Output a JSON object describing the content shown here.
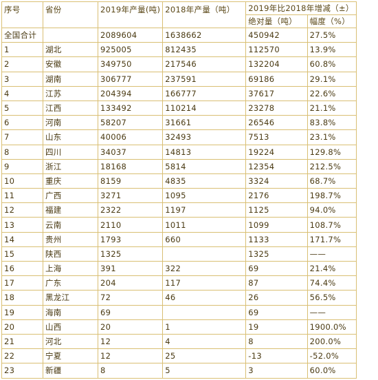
{
  "header": {
    "seq": "序号",
    "province": "省份",
    "output_2019": "2019年产量(吨)",
    "output_2018": "2018年产量（吨）",
    "change": "2019年比2018年增减（±）",
    "abs": "绝对量（吨）",
    "pct": "幅度（%）"
  },
  "rows": [
    {
      "seq": "全国合计",
      "province": "",
      "v2019": "2089604",
      "v2018": "1638662",
      "abs": "450942",
      "pct": "27.5%"
    },
    {
      "seq": "1",
      "province": "湖北",
      "v2019": "925005",
      "v2018": "812435",
      "abs": "112570",
      "pct": "13.9%"
    },
    {
      "seq": "2",
      "province": "安徽",
      "v2019": "349750",
      "v2018": "217546",
      "abs": "132204",
      "pct": "60.8%"
    },
    {
      "seq": "3",
      "province": "湖南",
      "v2019": "306777",
      "v2018": "237591",
      "abs": "69186",
      "pct": "29.1%"
    },
    {
      "seq": "4",
      "province": "江苏",
      "v2019": "204394",
      "v2018": "166777",
      "abs": "37617",
      "pct": "22.6%"
    },
    {
      "seq": "5",
      "province": "江西",
      "v2019": "133492",
      "v2018": "110214",
      "abs": "23278",
      "pct": "21.1%"
    },
    {
      "seq": "6",
      "province": "河南",
      "v2019": "58207",
      "v2018": "31661",
      "abs": "26546",
      "pct": "83.8%"
    },
    {
      "seq": "7",
      "province": "山东",
      "v2019": "40006",
      "v2018": "32493",
      "abs": "7513",
      "pct": "23.1%"
    },
    {
      "seq": "8",
      "province": "四川",
      "v2019": "34037",
      "v2018": "14813",
      "abs": "19224",
      "pct": "129.8%"
    },
    {
      "seq": "9",
      "province": "浙江",
      "v2019": "18168",
      "v2018": "5814",
      "abs": "12354",
      "pct": "212.5%"
    },
    {
      "seq": "10",
      "province": "重庆",
      "v2019": "8159",
      "v2018": "4835",
      "abs": "3324",
      "pct": "68.7%"
    },
    {
      "seq": "11",
      "province": "广西",
      "v2019": "3271",
      "v2018": "1095",
      "abs": "2176",
      "pct": "198.7%"
    },
    {
      "seq": "12",
      "province": "福建",
      "v2019": "2322",
      "v2018": "1197",
      "abs": "1125",
      "pct": "94.0%"
    },
    {
      "seq": "13",
      "province": "云南",
      "v2019": "2110",
      "v2018": "1011",
      "abs": "1099",
      "pct": "108.7%"
    },
    {
      "seq": "14",
      "province": "贵州",
      "v2019": "1793",
      "v2018": "660",
      "abs": "1133",
      "pct": "171.7%"
    },
    {
      "seq": "15",
      "province": "陕西",
      "v2019": "1325",
      "v2018": "",
      "abs": "1325",
      "pct": "——"
    },
    {
      "seq": "16",
      "province": "上海",
      "v2019": "391",
      "v2018": "322",
      "abs": "69",
      "pct": "21.4%"
    },
    {
      "seq": "17",
      "province": "广东",
      "v2019": "204",
      "v2018": "117",
      "abs": "87",
      "pct": "74.4%"
    },
    {
      "seq": "18",
      "province": "黑龙江",
      "v2019": "72",
      "v2018": "46",
      "abs": "26",
      "pct": "56.5%"
    },
    {
      "seq": "19",
      "province": "海南",
      "v2019": "69",
      "v2018": "",
      "abs": "69",
      "pct": "——"
    },
    {
      "seq": "20",
      "province": "山西",
      "v2019": "20",
      "v2018": "1",
      "abs": "19",
      "pct": "1900.0%"
    },
    {
      "seq": "21",
      "province": "河北",
      "v2019": "12",
      "v2018": "4",
      "abs": "8",
      "pct": "200.0%"
    },
    {
      "seq": "22",
      "province": "宁夏",
      "v2019": "12",
      "v2018": "25",
      "abs": "-13",
      "pct": "-52.0%"
    },
    {
      "seq": "23",
      "province": "新疆",
      "v2019": "8",
      "v2018": "5",
      "abs": "3",
      "pct": "60.0%"
    }
  ]
}
